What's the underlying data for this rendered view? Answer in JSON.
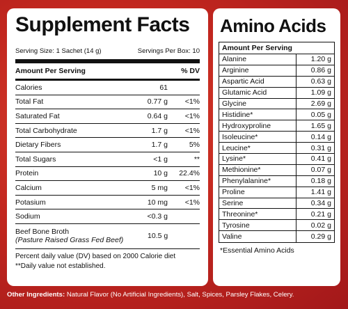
{
  "facts": {
    "title": "Supplement Facts",
    "serving_size": "Serving Size: 1 Sachet (14 g)",
    "servings_per_box": "Servings Per Box: 10",
    "amount_header": "Amount Per Serving",
    "dv_header": "% DV",
    "rows": [
      {
        "name": "Calories",
        "amount": "61",
        "dv": ""
      },
      {
        "name": "Total Fat",
        "amount": "0.77 g",
        "dv": "<1%"
      },
      {
        "name": "Saturated Fat",
        "amount": "0.64 g",
        "dv": "<1%"
      },
      {
        "name": "Total Carbohydrate",
        "amount": "1.7 g",
        "dv": "<1%"
      },
      {
        "name": "Dietary Fibers",
        "amount": "1.7 g",
        "dv": "5%"
      },
      {
        "name": "Total Sugars",
        "amount": "<1 g",
        "dv": "**"
      },
      {
        "name": "Protein",
        "amount": "10 g",
        "dv": "22.4%"
      },
      {
        "name": "Calcium",
        "amount": "5 mg",
        "dv": "<1%"
      },
      {
        "name": "Potasium",
        "amount": "10 mg",
        "dv": "<1%"
      },
      {
        "name": "Sodium",
        "amount": "<0.3 g",
        "dv": ""
      }
    ],
    "broth": {
      "name": "Beef Bone Broth",
      "subname": "(Pasture Raised Grass Fed Beef)",
      "amount": "10.5 g",
      "dv": ""
    },
    "footnote_1": "Percent daily value (DV) based on 2000 Calorie diet",
    "footnote_2": "**Daily value not established."
  },
  "amino": {
    "title": "Amino Acids",
    "header": "Amount Per Serving",
    "rows": [
      {
        "name": "Alanine",
        "amount": "1.20 g"
      },
      {
        "name": "Arginine",
        "amount": "0.86 g"
      },
      {
        "name": "Aspartic Acid",
        "amount": "0.63 g"
      },
      {
        "name": "Glutamic Acid",
        "amount": "1.09 g"
      },
      {
        "name": "Glycine",
        "amount": "2.69 g"
      },
      {
        "name": "Histidine*",
        "amount": "0.05 g"
      },
      {
        "name": "Hydroxyproline",
        "amount": "1.65 g"
      },
      {
        "name": "Isoleucine*",
        "amount": "0.14 g"
      },
      {
        "name": "Leucine*",
        "amount": "0.31 g"
      },
      {
        "name": "Lysine*",
        "amount": "0.41 g"
      },
      {
        "name": "Methionine*",
        "amount": "0.07 g"
      },
      {
        "name": "Phenylalanine*",
        "amount": "0.18 g"
      },
      {
        "name": "Proline",
        "amount": "1.41 g"
      },
      {
        "name": "Serine",
        "amount": "0.34 g"
      },
      {
        "name": "Threonine*",
        "amount": "0.21 g"
      },
      {
        "name": "Tyrosine",
        "amount": "0.02 g"
      },
      {
        "name": "Valine",
        "amount": "0.29 g"
      }
    ],
    "footnote": "*Essential Amino Acids"
  },
  "ingredients": {
    "label": "Other Ingredients:",
    "text": " Natural Flavor (No Artificial Ingredients), Salt, Spices, Parsley Flakes, Celery."
  },
  "colors": {
    "background": "#c2271f",
    "panel": "#ffffff",
    "text": "#111111"
  }
}
